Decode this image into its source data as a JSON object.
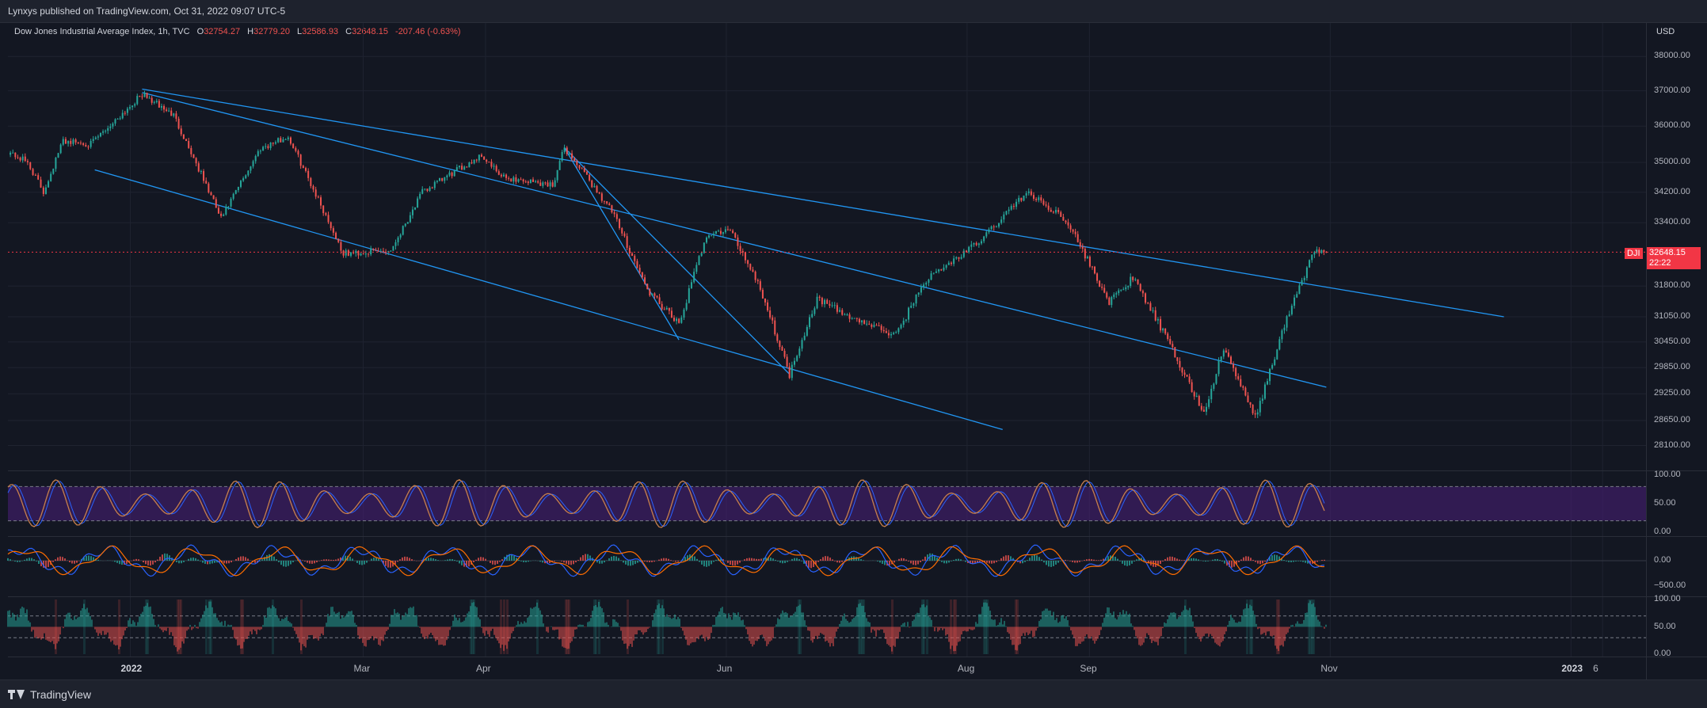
{
  "header": {
    "published": "Lynxys published on TradingView.com, Oct 31, 2022 09:07 UTC-5"
  },
  "legend": {
    "symbol": "Dow Jones Industrial Average Index, 1h, TVC",
    "open_label": "O",
    "open": "32754.27",
    "high_label": "H",
    "high": "32779.20",
    "low_label": "L",
    "low": "32586.93",
    "close_label": "C",
    "close": "32648.15",
    "change": "-207.46 (-0.63%)"
  },
  "price_axis": {
    "currency": "USD",
    "ticks": [
      "38000.00",
      "37000.00",
      "36000.00",
      "35000.00",
      "34200.00",
      "33400.00",
      "31800.00",
      "31050.00",
      "30450.00",
      "29850.00",
      "29250.00",
      "28650.00",
      "28100.00"
    ],
    "last_symbol": "DJI",
    "last_price": "32648.15",
    "countdown": "22:22"
  },
  "time_axis": {
    "labels": [
      "2022",
      "Mar",
      "Apr",
      "Jun",
      "Aug",
      "Sep",
      "Nov",
      "2023",
      "6"
    ]
  },
  "rsi_axis": {
    "ticks": [
      "100.00",
      "50.00",
      "0.00"
    ]
  },
  "macd_axis": {
    "ticks": [
      "0.00",
      "−500.00"
    ]
  },
  "osc_axis": {
    "ticks": [
      "100.00",
      "50.00",
      "0.00"
    ]
  },
  "colors": {
    "background": "#131722",
    "up": "#26a69a",
    "down": "#ef5350",
    "trendline": "#2196f3",
    "rsi_band": "#4a1f7a",
    "rsi_line": "#c8804c"
  },
  "footer": {
    "brand": "TradingView"
  },
  "chart_data": {
    "type": "candlestick",
    "title": "Dow Jones Industrial Average Index, 1h, TVC",
    "x_range": [
      "2021-12-01",
      "2023-01-20"
    ],
    "ylim": [
      27800,
      38500
    ],
    "last_close": 32648.15,
    "path": [
      [
        "2021-12-01",
        35300
      ],
      [
        "2021-12-06",
        35000
      ],
      [
        "2021-12-10",
        34200
      ],
      [
        "2021-12-15",
        35600
      ],
      [
        "2021-12-22",
        35500
      ],
      [
        "2022-01-04",
        36900
      ],
      [
        "2022-01-12",
        36300
      ],
      [
        "2022-01-24",
        33500
      ],
      [
        "2022-02-03",
        35400
      ],
      [
        "2022-02-10",
        35700
      ],
      [
        "2022-02-24",
        32600
      ],
      [
        "2022-03-08",
        32700
      ],
      [
        "2022-03-16",
        34200
      ],
      [
        "2022-03-31",
        35200
      ],
      [
        "2022-04-05",
        34600
      ],
      [
        "2022-04-18",
        34400
      ],
      [
        "2022-04-21",
        35400
      ],
      [
        "2022-05-03",
        33700
      ],
      [
        "2022-05-12",
        31700
      ],
      [
        "2022-05-20",
        30850
      ],
      [
        "2022-05-27",
        33100
      ],
      [
        "2022-06-02",
        33200
      ],
      [
        "2022-06-09",
        31900
      ],
      [
        "2022-06-17",
        29700
      ],
      [
        "2022-06-24",
        31500
      ],
      [
        "2022-07-01",
        31100
      ],
      [
        "2022-07-14",
        30600
      ],
      [
        "2022-07-21",
        31900
      ],
      [
        "2022-08-04",
        32900
      ],
      [
        "2022-08-16",
        34200
      ],
      [
        "2022-08-26",
        33500
      ],
      [
        "2022-09-06",
        31400
      ],
      [
        "2022-09-12",
        32000
      ],
      [
        "2022-09-19",
        30800
      ],
      [
        "2022-09-30",
        28800
      ],
      [
        "2022-10-05",
        30300
      ],
      [
        "2022-10-13",
        28700
      ],
      [
        "2022-10-21",
        31000
      ],
      [
        "2022-10-28",
        32700
      ],
      [
        "2022-10-31",
        32648
      ]
    ],
    "trendlines": [
      {
        "from": [
          "2022-01-04",
          37050
        ],
        "to": [
          "2022-12-15",
          31050
        ]
      },
      {
        "from": [
          "2022-01-04",
          36950
        ],
        "to": [
          "2022-10-31",
          29400
        ]
      },
      {
        "from": [
          "2021-12-23",
          34800
        ],
        "to": [
          "2022-08-10",
          28450
        ]
      },
      {
        "from": [
          "2022-04-21",
          35400
        ],
        "to": [
          "2022-06-17",
          29700
        ]
      },
      {
        "from": [
          "2022-04-21",
          35400
        ],
        "to": [
          "2022-05-20",
          30500
        ]
      }
    ],
    "indicators": [
      {
        "name": "RSI",
        "ylim": [
          0,
          100
        ],
        "band": [
          20,
          80
        ]
      },
      {
        "name": "MACD",
        "ylim": [
          -800,
          800
        ]
      },
      {
        "name": "Oscillator",
        "ylim": [
          0,
          100
        ],
        "band": [
          30,
          70
        ]
      }
    ]
  }
}
